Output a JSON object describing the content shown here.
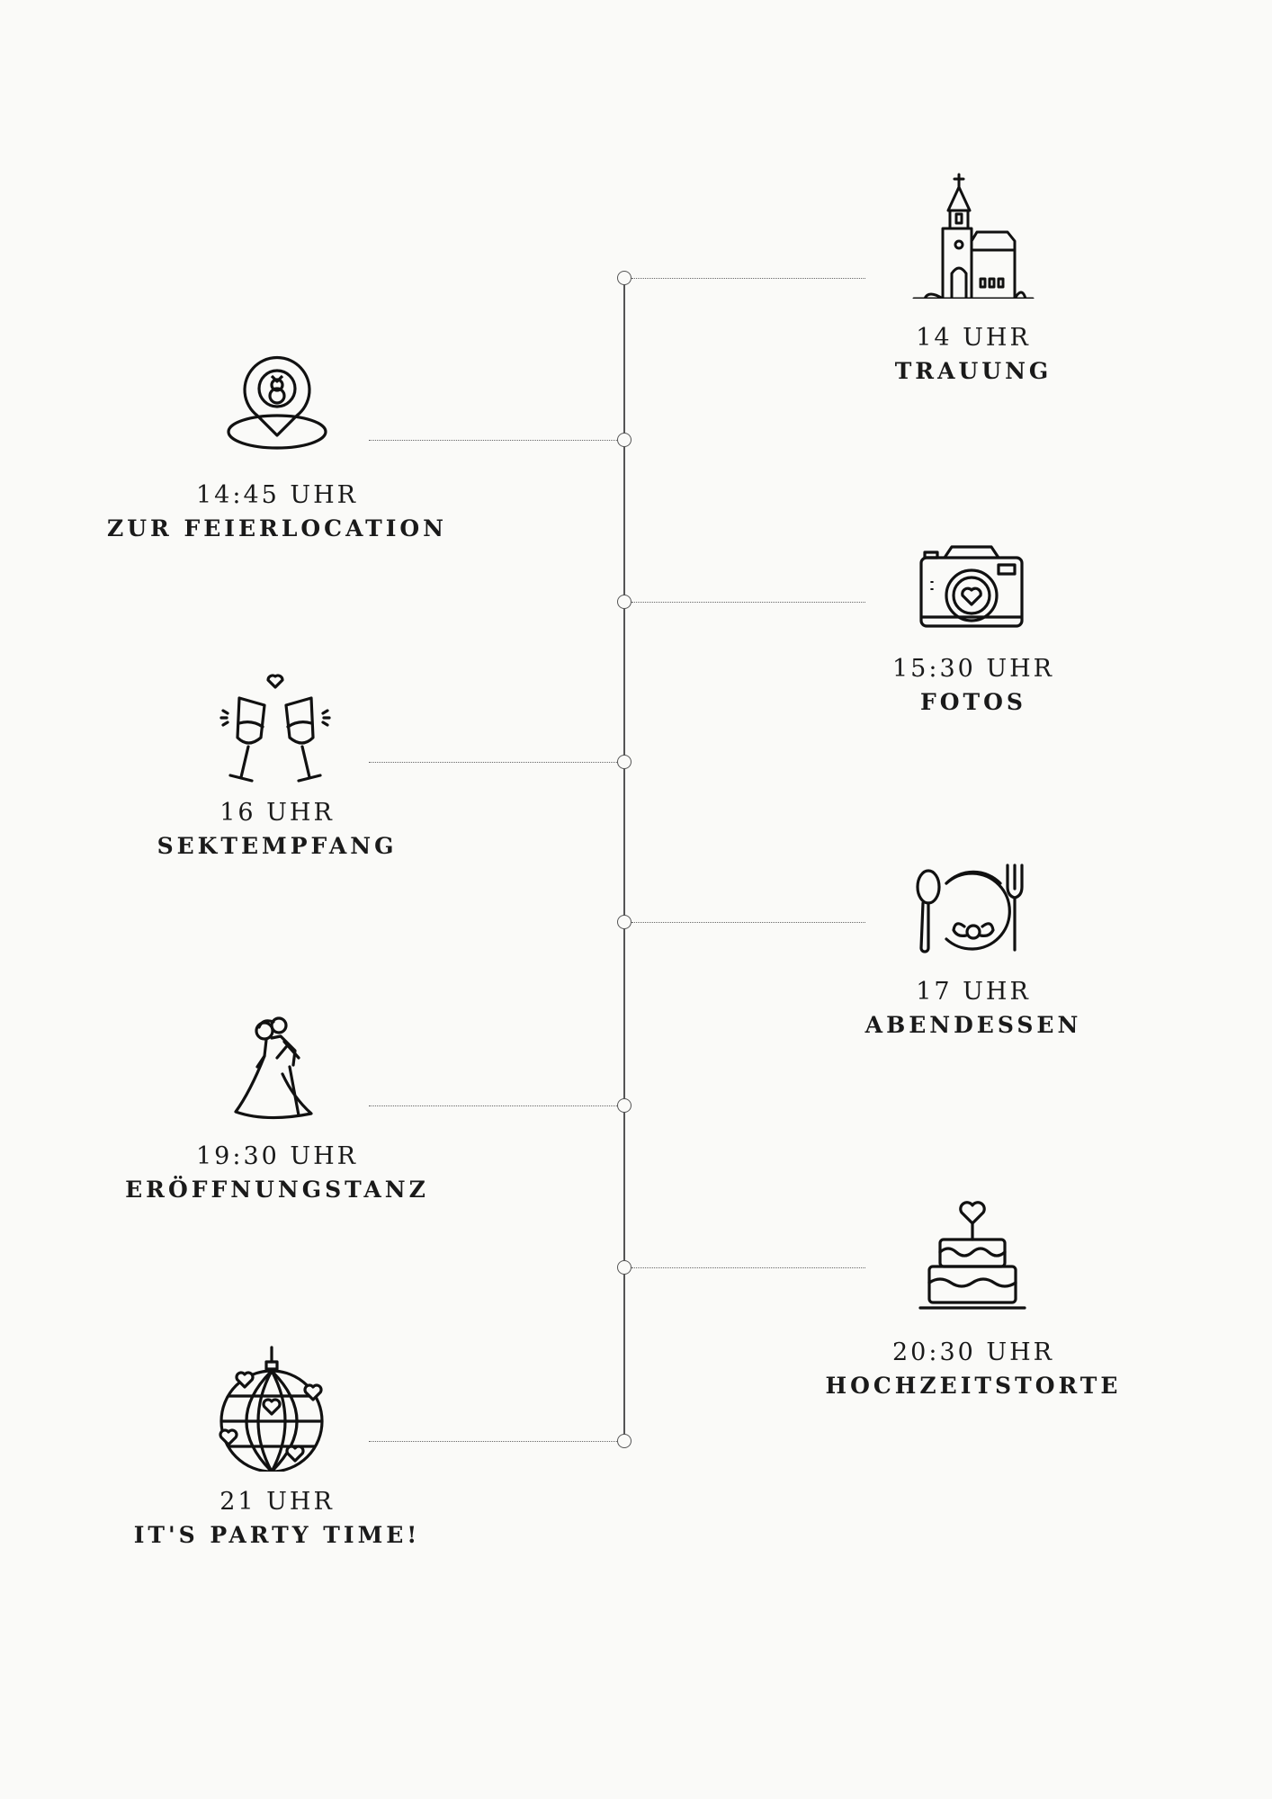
{
  "events": [
    {
      "time": "14 UHR",
      "title": "TRAUUNG",
      "icon": "church-icon"
    },
    {
      "time": "14:45 UHR",
      "title": "ZUR FEIERLOCATION",
      "icon": "location-pin-ring-icon"
    },
    {
      "time": "15:30 UHR",
      "title": "FOTOS",
      "icon": "camera-icon"
    },
    {
      "time": "16 UHR",
      "title": "SEKTEMPFANG",
      "icon": "champagne-toast-icon"
    },
    {
      "time": "17 UHR",
      "title": "ABENDESSEN",
      "icon": "dinner-plate-icon"
    },
    {
      "time": "19:30 UHR",
      "title": "ERÖFFNUNGSTANZ",
      "icon": "dancing-couple-icon"
    },
    {
      "time": "20:30 UHR",
      "title": "HOCHZEITSTORTE",
      "icon": "wedding-cake-icon"
    },
    {
      "time": "21 UHR",
      "title": "IT'S PARTY TIME!",
      "icon": "disco-ball-icon"
    }
  ],
  "colors": {
    "background": "#fafaf8",
    "ink": "#1a1a1a",
    "line": "#555555"
  }
}
